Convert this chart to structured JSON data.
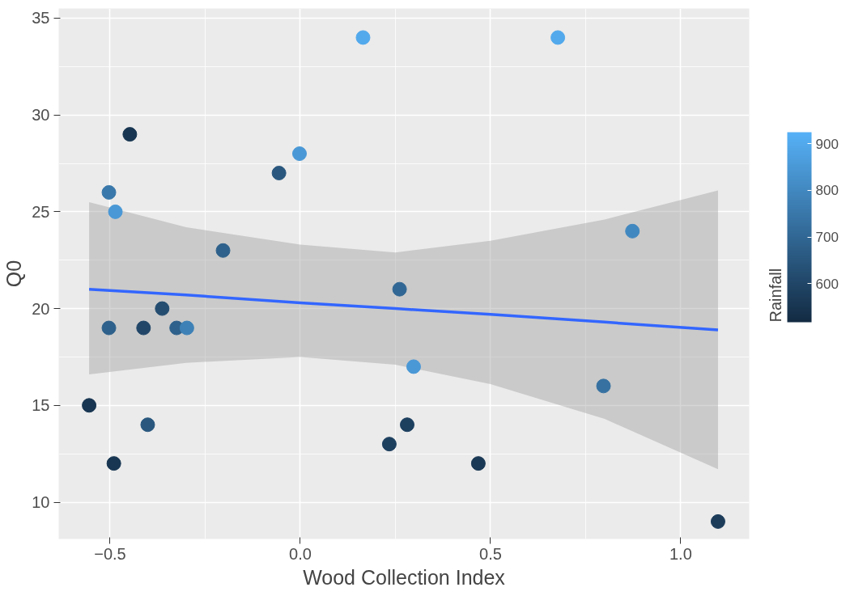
{
  "chart_data": {
    "type": "scatter",
    "xlabel": "Wood Collection Index",
    "ylabel": "Q0",
    "clabel": "Rainfall",
    "xlim": [
      -0.635,
      1.18
    ],
    "ylim": [
      8.1,
      35.5
    ],
    "xticks": [
      -0.5,
      {
        "value": 0,
        "label": "0.0"
      },
      0.5,
      {
        "value": 1,
        "label": "1.0"
      }
    ],
    "yticks": [
      10,
      15,
      20,
      25,
      30,
      35
    ],
    "clim": [
      517,
      925
    ],
    "cticks": [
      600,
      700,
      800,
      900
    ],
    "grid": true,
    "series": [
      {
        "type": "scatter",
        "marker": "circle",
        "colors": [
          "#52a9ec",
          "#52a9ec",
          "#183652",
          "#4a98d6",
          "#29577e",
          "#3978aa",
          "#4a98d6",
          "#4188c0",
          "#2e618b",
          "#316794",
          "#244d70",
          "#2e618b",
          "#214668",
          "#2e618b",
          "#3e81b7",
          "#4a98d6",
          "#3671a1",
          "#183652",
          "#29577e",
          "#1d405f",
          "#1d405f",
          "#183652",
          "#1a3956",
          "#1c3c5a"
        ],
        "x": [
          0.165,
          0.677,
          -0.448,
          -0.002,
          -0.056,
          -0.503,
          -0.486,
          0.873,
          -0.203,
          0.261,
          -0.363,
          -0.503,
          -0.412,
          -0.325,
          -0.298,
          0.298,
          0.797,
          -0.555,
          -0.401,
          0.281,
          0.234,
          -0.49,
          0.468,
          1.098
        ],
        "values": [
          34,
          34,
          29,
          28,
          27,
          26,
          25,
          24,
          23,
          21,
          20,
          19,
          19,
          19,
          19,
          17,
          16,
          15,
          14,
          14,
          13,
          12,
          12,
          9
        ],
        "cvalues": [
          900,
          900,
          550,
          850,
          650,
          750,
          850,
          800,
          680,
          700,
          620,
          680,
          600,
          680,
          780,
          850,
          730,
          550,
          650,
          580,
          580,
          550,
          560,
          570
        ]
      },
      {
        "type": "line",
        "color": "#3366ff",
        "x": [
          -0.555,
          -0.3,
          0.0,
          0.25,
          0.5,
          0.8,
          1.098
        ],
        "values": [
          21.0,
          20.7,
          20.3,
          20.0,
          19.7,
          19.3,
          18.9
        ],
        "lower": [
          16.6,
          17.2,
          17.5,
          17.1,
          16.1,
          14.3,
          11.7
        ],
        "upper": [
          25.5,
          24.2,
          23.3,
          22.9,
          23.5,
          24.6,
          26.1
        ]
      }
    ]
  }
}
